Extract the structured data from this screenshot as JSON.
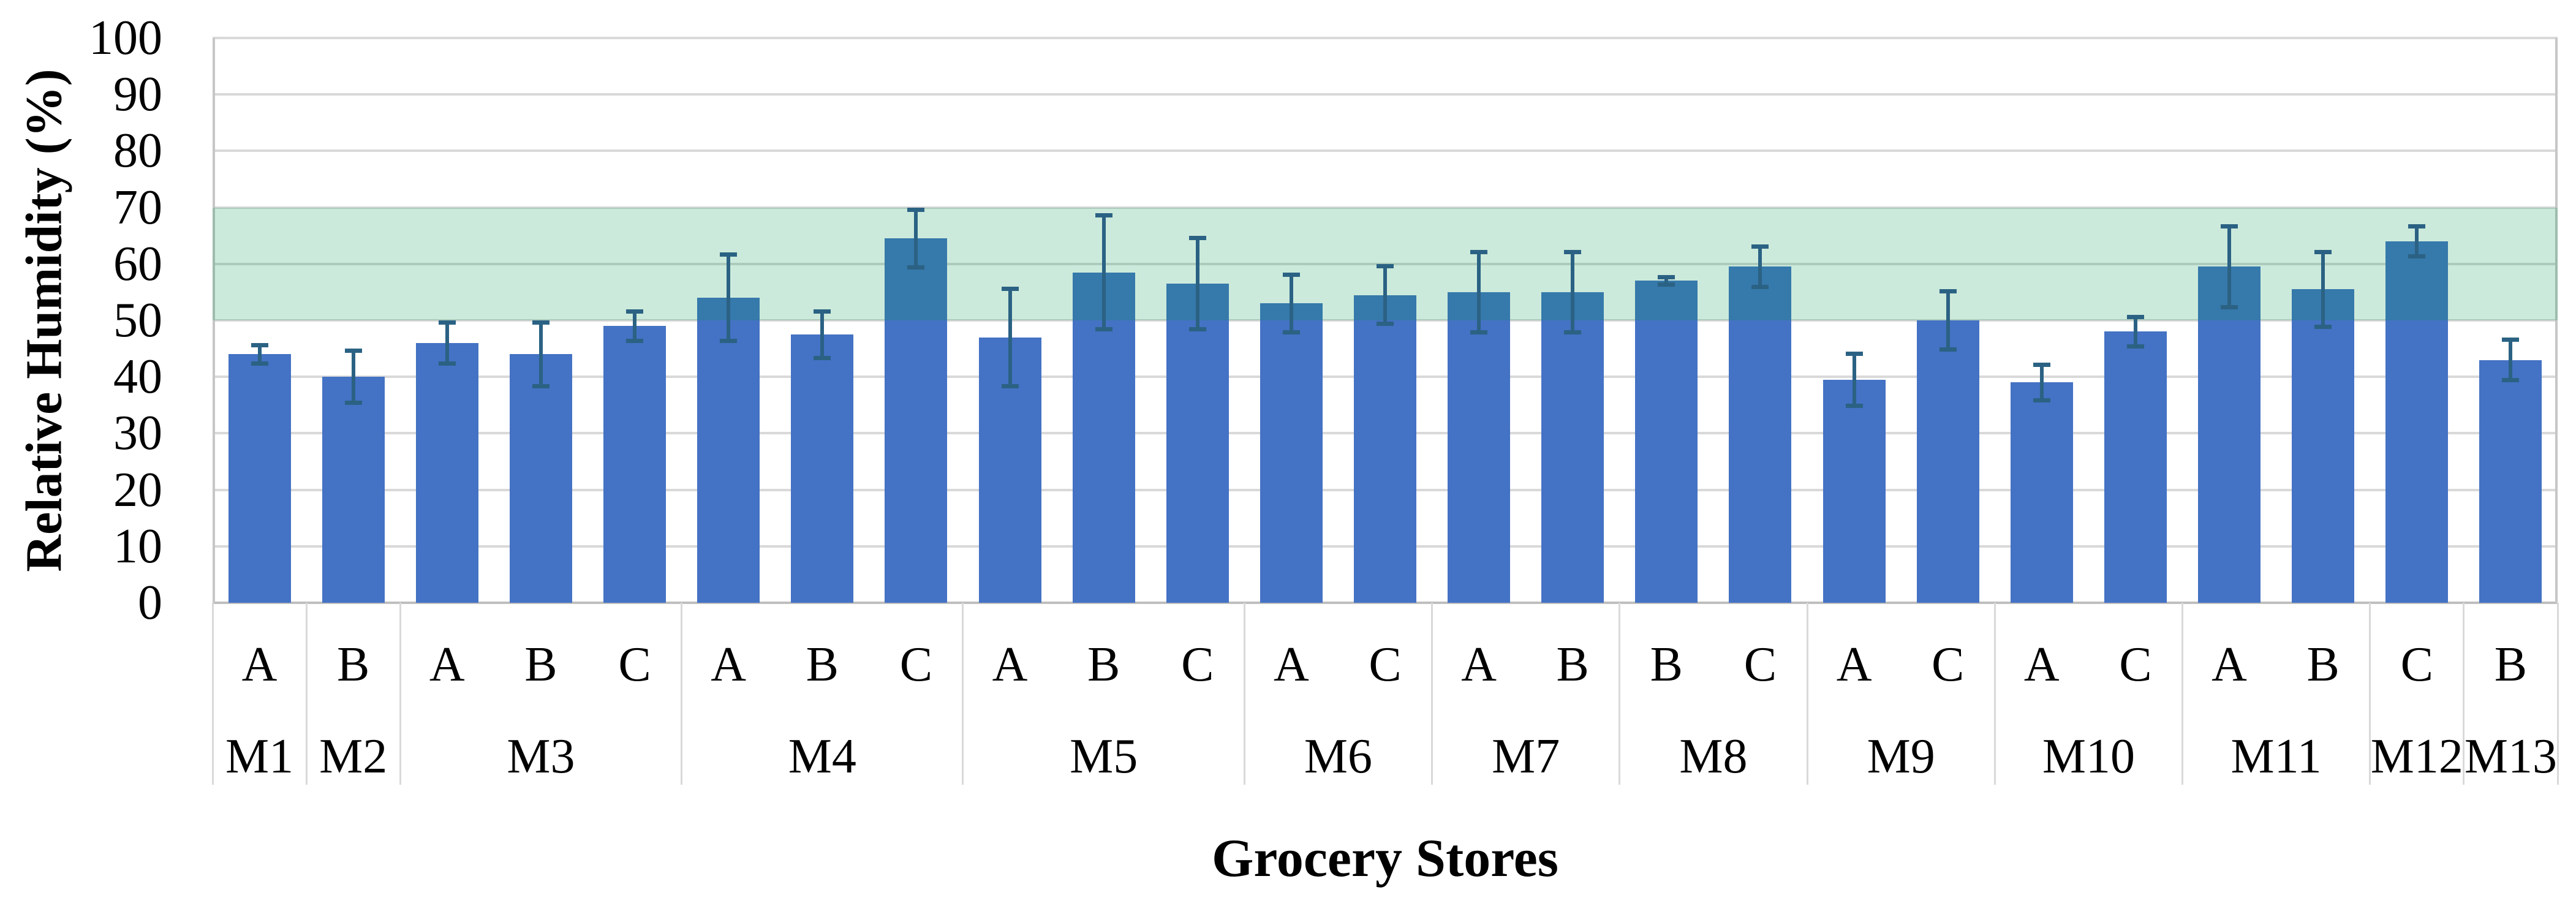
{
  "chart_data": {
    "type": "bar",
    "title": "",
    "xlabel": "Grocery Stores",
    "ylabel": "Relative Humidity (%)",
    "ylim": [
      0,
      100
    ],
    "ytick_values": [
      0,
      10,
      20,
      30,
      40,
      50,
      60,
      70,
      80,
      90,
      100
    ],
    "ytick_labels": [
      "0",
      "10",
      "20",
      "30",
      "40",
      "50",
      "60",
      "70",
      "80",
      "90",
      "100"
    ],
    "grid": true,
    "legend": "none",
    "reference_band": {
      "from": 50,
      "to": 70
    },
    "groups": [
      {
        "store": "M1",
        "bars": [
          {
            "label": "A",
            "value": 44,
            "err_up": 2,
            "err_down": 2
          }
        ]
      },
      {
        "store": "M2",
        "bars": [
          {
            "label": "B",
            "value": 40,
            "err_up": 5,
            "err_down": 5
          }
        ]
      },
      {
        "store": "M3",
        "bars": [
          {
            "label": "A",
            "value": 46,
            "err_up": 4,
            "err_down": 4
          },
          {
            "label": "B",
            "value": 44,
            "err_up": 6,
            "err_down": 6
          },
          {
            "label": "C",
            "value": 49,
            "err_up": 3,
            "err_down": 3
          }
        ]
      },
      {
        "store": "M4",
        "bars": [
          {
            "label": "A",
            "value": 54,
            "err_up": 8,
            "err_down": 8
          },
          {
            "label": "B",
            "value": 47.5,
            "err_up": 4.5,
            "err_down": 4.5
          },
          {
            "label": "C",
            "value": 64.5,
            "err_up": 5.5,
            "err_down": 5.5
          }
        ]
      },
      {
        "store": "M5",
        "bars": [
          {
            "label": "A",
            "value": 47,
            "err_up": 9,
            "err_down": 9
          },
          {
            "label": "B",
            "value": 58.5,
            "err_up": 10.5,
            "err_down": 10.5
          },
          {
            "label": "C",
            "value": 56.5,
            "err_up": 8.5,
            "err_down": 8.5
          }
        ]
      },
      {
        "store": "M6",
        "bars": [
          {
            "label": "A",
            "value": 53,
            "err_up": 5.5,
            "err_down": 5.5
          },
          {
            "label": "C",
            "value": 54.5,
            "err_up": 5.5,
            "err_down": 5.5
          }
        ]
      },
      {
        "store": "M7",
        "bars": [
          {
            "label": "A",
            "value": 55,
            "err_up": 7.5,
            "err_down": 7.5
          },
          {
            "label": "B",
            "value": 55,
            "err_up": 7.5,
            "err_down": 7.5
          }
        ]
      },
      {
        "store": "M8",
        "bars": [
          {
            "label": "B",
            "value": 57,
            "err_up": 1,
            "err_down": 1
          },
          {
            "label": "C",
            "value": 59.5,
            "err_up": 4,
            "err_down": 4
          }
        ]
      },
      {
        "store": "M9",
        "bars": [
          {
            "label": "A",
            "value": 39.5,
            "err_up": 5,
            "err_down": 5
          },
          {
            "label": "C",
            "value": 50,
            "err_up": 5.5,
            "err_down": 5.5
          }
        ]
      },
      {
        "store": "M10",
        "bars": [
          {
            "label": "A",
            "value": 39,
            "err_up": 3.5,
            "err_down": 3.5
          },
          {
            "label": "C",
            "value": 48,
            "err_up": 3,
            "err_down": 3
          }
        ]
      },
      {
        "store": "M11",
        "bars": [
          {
            "label": "A",
            "value": 59.5,
            "err_up": 7.5,
            "err_down": 7.5
          },
          {
            "label": "B",
            "value": 55.5,
            "err_up": 7,
            "err_down": 7
          }
        ]
      },
      {
        "store": "M12",
        "bars": [
          {
            "label": "C",
            "value": 64,
            "err_up": 3,
            "err_down": 3
          }
        ]
      },
      {
        "store": "M13",
        "bars": [
          {
            "label": "B",
            "value": 43,
            "err_up": 4,
            "err_down": 4
          }
        ]
      }
    ]
  },
  "style": {
    "bar_color": "#4472C4",
    "bar_in_band_color": "#3779AC",
    "error_bar_color": "#2B6284",
    "band_fill": "rgba(0,150,75,0.2)",
    "gridline_color": "#D9D9D9",
    "axis_line_color": "#BFBFBF",
    "border_color": "#C6C6C6",
    "divider_color": "#D9D9D9",
    "text_color": "#000000",
    "background": "#FFFFFF"
  }
}
